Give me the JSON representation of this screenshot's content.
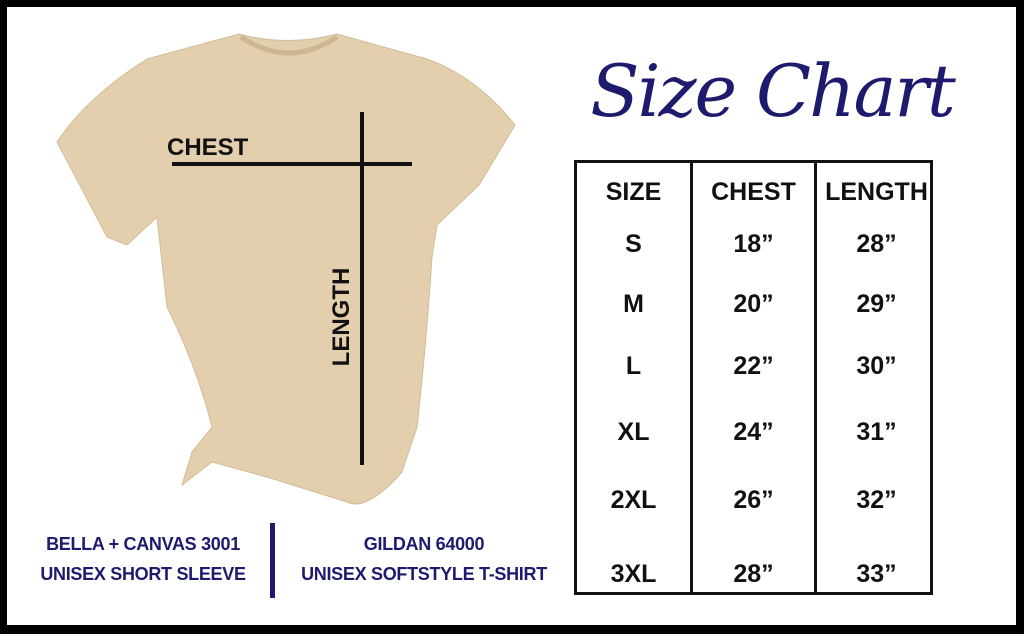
{
  "title": "Size Chart",
  "shirt_labels": {
    "chest": "CHEST",
    "length": "LENGTH"
  },
  "colors": {
    "navy": "#1e1a6e",
    "shirt": "#e3cfae",
    "border": "#000000"
  },
  "table": {
    "headers": [
      "SIZE",
      "CHEST",
      "LENGTH"
    ],
    "rows": [
      [
        "S",
        "18”",
        "28”"
      ],
      [
        "M",
        "20”",
        "29”"
      ],
      [
        "L",
        "22”",
        "30”"
      ],
      [
        "XL",
        "24”",
        "31”"
      ],
      [
        "2XL",
        "26”",
        "32”"
      ],
      [
        "3XL",
        "28”",
        "33”"
      ]
    ]
  },
  "brands": [
    {
      "line1": "BELLA + CANVAS 3001",
      "line2": "UNISEX SHORT SLEEVE"
    },
    {
      "line1": "GILDAN 64000",
      "line2": "UNISEX SOFTSTYLE T-SHIRT"
    }
  ]
}
